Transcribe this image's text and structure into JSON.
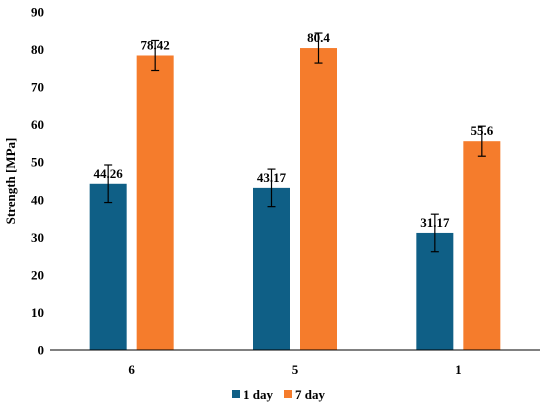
{
  "chart_data": {
    "type": "bar",
    "categories": [
      "6",
      "5",
      "1"
    ],
    "series": [
      {
        "name": "1 day",
        "values": [
          44.26,
          43.17,
          31.17
        ],
        "errors": [
          5.0,
          5.0,
          5.0
        ],
        "color": "#0f5f86"
      },
      {
        "name": "7 day",
        "values": [
          78.42,
          80.4,
          55.6
        ],
        "errors": [
          4.0,
          4.0,
          4.0
        ],
        "color": "#f57c2c"
      }
    ],
    "data_labels": [
      [
        "44.26",
        "43.17",
        "31.17"
      ],
      [
        "78.42",
        "80.4",
        "55.6"
      ]
    ],
    "ylabel": "Strength [MPa]",
    "xlabel": "",
    "ylim": [
      0,
      90
    ],
    "yticks": [
      0,
      10,
      20,
      30,
      40,
      50,
      60,
      70,
      80,
      90
    ],
    "grid": false,
    "legend": "bottom"
  }
}
